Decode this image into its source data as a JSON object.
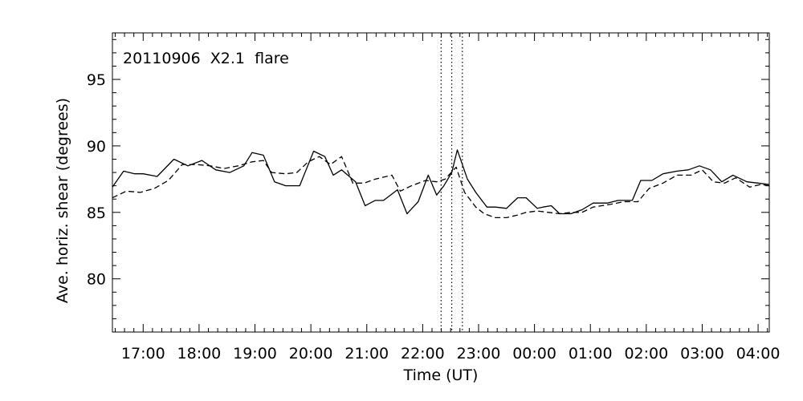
{
  "chart_data": {
    "type": "line",
    "annotation": "20110906  X2.1  flare",
    "xlabel": "Time (UT)",
    "ylabel": "Ave. horiz. shear (degrees)",
    "x_unit": "hours from 2011-09-06 17:00 UT",
    "xlim": [
      -0.55,
      11.2
    ],
    "ylim": [
      76,
      98.5
    ],
    "y_ticks": [
      80,
      85,
      90,
      95
    ],
    "x_ticks": [
      {
        "x": 0,
        "label": "17:00"
      },
      {
        "x": 1,
        "label": "18:00"
      },
      {
        "x": 2,
        "label": "19:00"
      },
      {
        "x": 3,
        "label": "20:00"
      },
      {
        "x": 4,
        "label": "21:00"
      },
      {
        "x": 5,
        "label": "22:00"
      },
      {
        "x": 6,
        "label": "23:00"
      },
      {
        "x": 7,
        "label": "00:00"
      },
      {
        "x": 8,
        "label": "01:00"
      },
      {
        "x": 9,
        "label": "02:00"
      },
      {
        "x": 10,
        "label": "03:00"
      },
      {
        "x": 11,
        "label": "04:00"
      }
    ],
    "vlines": [
      5.33,
      5.52,
      5.71
    ],
    "grid": false,
    "series": [
      {
        "style": "solid",
        "points": [
          [
            -0.55,
            86.9
          ],
          [
            -0.35,
            88.1
          ],
          [
            -0.15,
            87.9
          ],
          [
            0.0,
            87.9
          ],
          [
            0.25,
            87.7
          ],
          [
            0.55,
            89.0
          ],
          [
            0.8,
            88.5
          ],
          [
            1.05,
            88.9
          ],
          [
            1.3,
            88.2
          ],
          [
            1.55,
            88.0
          ],
          [
            1.8,
            88.5
          ],
          [
            1.95,
            89.5
          ],
          [
            2.15,
            89.3
          ],
          [
            2.35,
            87.3
          ],
          [
            2.55,
            87.0
          ],
          [
            2.8,
            87.0
          ],
          [
            3.05,
            89.6
          ],
          [
            3.25,
            89.2
          ],
          [
            3.4,
            87.8
          ],
          [
            3.55,
            88.2
          ],
          [
            3.8,
            87.3
          ],
          [
            3.97,
            85.5
          ],
          [
            4.15,
            85.9
          ],
          [
            4.3,
            85.9
          ],
          [
            4.55,
            86.7
          ],
          [
            4.72,
            84.9
          ],
          [
            4.92,
            85.8
          ],
          [
            5.1,
            87.8
          ],
          [
            5.25,
            86.3
          ],
          [
            5.38,
            87.0
          ],
          [
            5.52,
            88.0
          ],
          [
            5.62,
            89.7
          ],
          [
            5.8,
            87.5
          ],
          [
            5.95,
            86.5
          ],
          [
            6.15,
            85.4
          ],
          [
            6.3,
            85.4
          ],
          [
            6.5,
            85.3
          ],
          [
            6.7,
            86.1
          ],
          [
            6.85,
            86.1
          ],
          [
            6.95,
            85.7
          ],
          [
            7.05,
            85.3
          ],
          [
            7.15,
            85.4
          ],
          [
            7.3,
            85.5
          ],
          [
            7.45,
            84.9
          ],
          [
            7.65,
            84.9
          ],
          [
            7.85,
            85.2
          ],
          [
            8.05,
            85.7
          ],
          [
            8.3,
            85.7
          ],
          [
            8.5,
            85.9
          ],
          [
            8.75,
            85.9
          ],
          [
            8.9,
            87.4
          ],
          [
            9.1,
            87.4
          ],
          [
            9.3,
            87.9
          ],
          [
            9.55,
            88.1
          ],
          [
            9.75,
            88.2
          ],
          [
            9.95,
            88.5
          ],
          [
            10.15,
            88.2
          ],
          [
            10.35,
            87.3
          ],
          [
            10.55,
            87.8
          ],
          [
            10.8,
            87.3
          ],
          [
            11.0,
            87.2
          ],
          [
            11.2,
            87.1
          ]
        ]
      },
      {
        "style": "dashed",
        "points": [
          [
            -0.55,
            86.1
          ],
          [
            -0.3,
            86.6
          ],
          [
            -0.05,
            86.5
          ],
          [
            0.2,
            86.8
          ],
          [
            0.45,
            87.4
          ],
          [
            0.7,
            88.6
          ],
          [
            0.95,
            88.6
          ],
          [
            1.2,
            88.5
          ],
          [
            1.45,
            88.3
          ],
          [
            1.7,
            88.5
          ],
          [
            1.95,
            88.8
          ],
          [
            2.15,
            88.9
          ],
          [
            2.3,
            88.0
          ],
          [
            2.55,
            87.9
          ],
          [
            2.75,
            88.0
          ],
          [
            2.95,
            88.8
          ],
          [
            3.15,
            89.2
          ],
          [
            3.35,
            88.6
          ],
          [
            3.55,
            89.2
          ],
          [
            3.75,
            87.2
          ],
          [
            3.95,
            87.2
          ],
          [
            4.15,
            87.5
          ],
          [
            4.45,
            87.8
          ],
          [
            4.6,
            86.6
          ],
          [
            4.8,
            87.0
          ],
          [
            5.05,
            87.4
          ],
          [
            5.25,
            87.3
          ],
          [
            5.4,
            87.5
          ],
          [
            5.6,
            88.4
          ],
          [
            5.75,
            86.5
          ],
          [
            5.95,
            85.4
          ],
          [
            6.1,
            84.9
          ],
          [
            6.3,
            84.6
          ],
          [
            6.5,
            84.6
          ],
          [
            6.7,
            84.8
          ],
          [
            6.85,
            85.0
          ],
          [
            7.05,
            85.1
          ],
          [
            7.25,
            85.0
          ],
          [
            7.45,
            84.9
          ],
          [
            7.65,
            85.0
          ],
          [
            7.85,
            85.0
          ],
          [
            8.05,
            85.4
          ],
          [
            8.35,
            85.6
          ],
          [
            8.6,
            85.8
          ],
          [
            8.85,
            85.8
          ],
          [
            9.05,
            86.8
          ],
          [
            9.3,
            87.2
          ],
          [
            9.55,
            87.8
          ],
          [
            9.8,
            87.8
          ],
          [
            10.0,
            88.2
          ],
          [
            10.2,
            87.3
          ],
          [
            10.4,
            87.2
          ],
          [
            10.6,
            87.6
          ],
          [
            10.85,
            86.9
          ],
          [
            11.05,
            87.1
          ],
          [
            11.2,
            87.0
          ]
        ]
      }
    ]
  }
}
